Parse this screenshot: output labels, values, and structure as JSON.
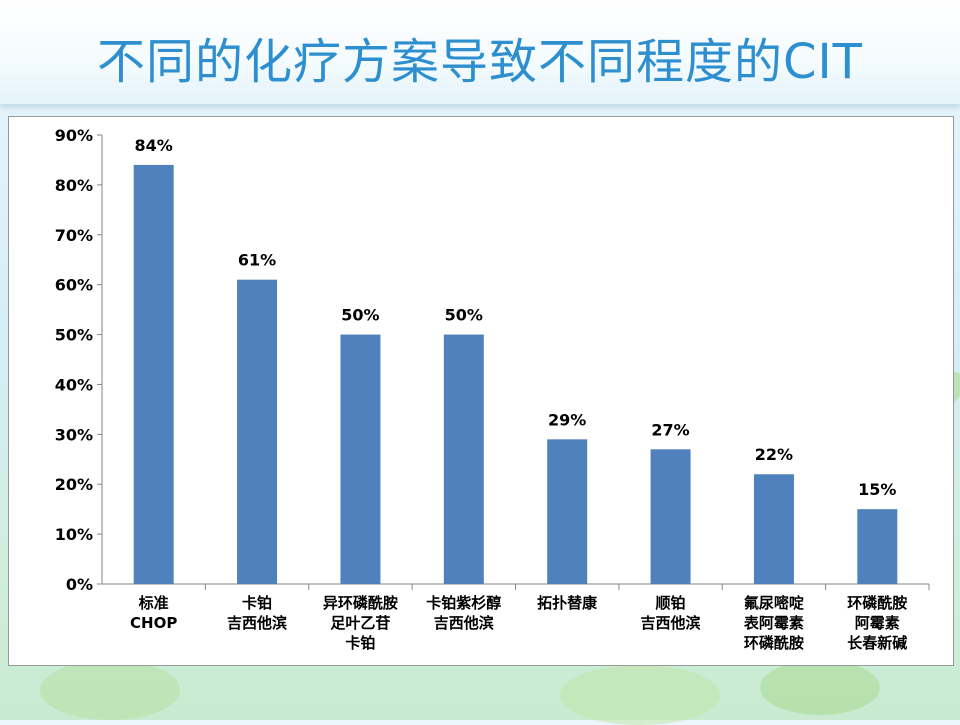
{
  "slide": {
    "title": "不同的化疗方案导致不同程度的CIT"
  },
  "colors": {
    "bar": "#4f81bd",
    "title": "#2e8fd0",
    "text": "#000000"
  },
  "chart_data": {
    "type": "bar",
    "title": "",
    "xlabel": "",
    "ylabel": "",
    "ylim": [
      0,
      90
    ],
    "yticks": [
      "0%",
      "10%",
      "20%",
      "30%",
      "40%",
      "50%",
      "60%",
      "70%",
      "80%",
      "90%"
    ],
    "grid": false,
    "legend": "none",
    "categories": [
      [
        "标准",
        "CHOP"
      ],
      [
        "卡铂",
        "吉西他滨"
      ],
      [
        "异环磷酰胺",
        "足叶乙苷",
        "卡铂"
      ],
      [
        "卡铂紫杉醇",
        "吉西他滨"
      ],
      [
        "拓扑替康"
      ],
      [
        "顺铂",
        "吉西他滨"
      ],
      [
        "氟尿嘧啶",
        "表阿霉素",
        "环磷酰胺"
      ],
      [
        "环磷酰胺",
        "阿霉素",
        "长春新碱"
      ]
    ],
    "values": [
      84,
      61,
      50,
      50,
      29,
      27,
      22,
      15
    ],
    "data_labels": [
      "84%",
      "61%",
      "50%",
      "50%",
      "29%",
      "27%",
      "22%",
      "15%"
    ]
  }
}
